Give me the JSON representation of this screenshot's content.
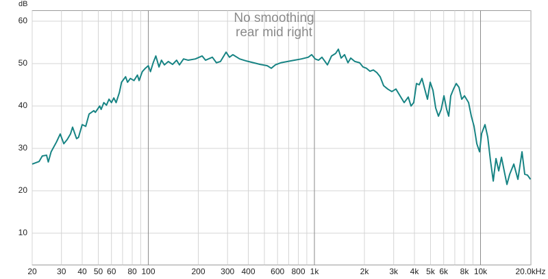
{
  "chart_data": {
    "type": "line",
    "title": "No smoothing",
    "subtitle": "rear mid right",
    "y_label": "dB",
    "log_x": true,
    "grid": true,
    "xlim": [
      20,
      20000
    ],
    "ylim": [
      2.5,
      62.5
    ],
    "xticks": [
      20,
      30,
      40,
      50,
      60,
      80,
      100,
      200,
      300,
      400,
      600,
      800,
      {
        "value": 1000,
        "label": "1k"
      },
      {
        "value": 2000,
        "label": "2k"
      },
      {
        "value": 3000,
        "label": "3k"
      },
      {
        "value": 4000,
        "label": "4k"
      },
      {
        "value": 5000,
        "label": "5k"
      },
      {
        "value": 6000,
        "label": "6k"
      },
      {
        "value": 8000,
        "label": "8k"
      },
      {
        "value": 10000,
        "label": "10k"
      },
      {
        "value": 20000,
        "label": "20.0kHz"
      }
    ],
    "xminorticks": [
      70,
      90,
      500,
      700,
      900,
      7000,
      9000
    ],
    "yticks": [
      10,
      20,
      30,
      40,
      50,
      60
    ],
    "x": [
      20,
      22,
      23,
      24.4,
      25,
      26,
      28,
      29.5,
      31,
      32.5,
      34,
      35,
      37,
      38,
      40,
      42,
      44,
      47,
      48,
      51,
      52,
      54,
      56,
      58,
      60,
      62,
      64,
      67,
      69,
      73,
      75,
      78,
      82,
      86,
      88,
      92,
      96,
      100,
      103,
      107,
      111,
      116,
      120,
      125,
      132,
      140,
      148,
      154,
      163,
      174,
      192,
      211,
      221,
      243,
      257,
      272,
      294,
      308,
      323,
      355,
      391,
      430,
      473,
      520,
      550,
      582,
      628,
      690,
      759,
      835,
      918,
      963,
      1010,
      1059,
      1110,
      1198,
      1268,
      1342,
      1394,
      1448,
      1519,
      1592,
      1654,
      1751,
      1871,
      1962,
      2058,
      2158,
      2263,
      2373,
      2488,
      2609,
      2761,
      2924,
      3095,
      3277,
      3469,
      3672,
      3815,
      3962,
      4116,
      4276,
      4441,
      4614,
      4793,
      4979,
      5172,
      5373,
      5581,
      5798,
      6023,
      6253,
      6433,
      6619,
      6875,
      7142,
      7419,
      7707,
      8006,
      8474,
      8802,
      9142,
      9498,
      9866,
      10150,
      10640,
      11050,
      11480,
      11930,
      12390,
      12870,
      13370,
      13880,
      14420,
      14980,
      15860,
      16790,
      17770,
      18460,
      19170,
      20000
    ],
    "series": [
      {
        "color": "#168383",
        "values": [
          26.3,
          26.9,
          28.2,
          28.4,
          26.8,
          29.2,
          31.5,
          33.4,
          31.1,
          32.1,
          33.4,
          35.0,
          32.3,
          32.6,
          35.6,
          35.2,
          38.1,
          38.9,
          38.5,
          40.0,
          39.2,
          40.8,
          40.2,
          41.6,
          40.8,
          41.9,
          40.8,
          43.2,
          45.6,
          46.9,
          45.6,
          46.5,
          46.0,
          47.3,
          46.0,
          48.1,
          48.9,
          49.5,
          48.1,
          50.2,
          51.8,
          49.2,
          50.8,
          49.7,
          50.5,
          49.8,
          50.8,
          49.7,
          51.1,
          50.8,
          51.1,
          51.8,
          50.8,
          51.5,
          50.2,
          50.5,
          52.7,
          51.5,
          52.1,
          51.1,
          50.6,
          50.2,
          49.8,
          49.5,
          48.9,
          49.7,
          50.2,
          50.5,
          50.8,
          51.1,
          51.5,
          52.1,
          51.1,
          50.8,
          51.5,
          49.7,
          51.8,
          52.4,
          53.4,
          51.3,
          52.1,
          50.2,
          51.3,
          50.5,
          50.2,
          49.2,
          48.9,
          48.2,
          48.5,
          47.9,
          46.9,
          44.8,
          44.0,
          43.4,
          44.0,
          42.4,
          40.8,
          42.1,
          40.0,
          40.8,
          45.3,
          45.0,
          46.5,
          44.0,
          41.6,
          45.6,
          43.7,
          39.5,
          37.6,
          39.2,
          42.4,
          39.2,
          37.6,
          42.4,
          44.0,
          45.3,
          44.4,
          41.6,
          42.4,
          40.8,
          37.6,
          35.2,
          31.1,
          29.2,
          33.5,
          35.6,
          32.7,
          27.1,
          22.3,
          27.6,
          24.7,
          27.9,
          24.7,
          21.5,
          23.9,
          26.3,
          22.7,
          29.2,
          23.9,
          23.7,
          22.7
        ]
      }
    ]
  }
}
